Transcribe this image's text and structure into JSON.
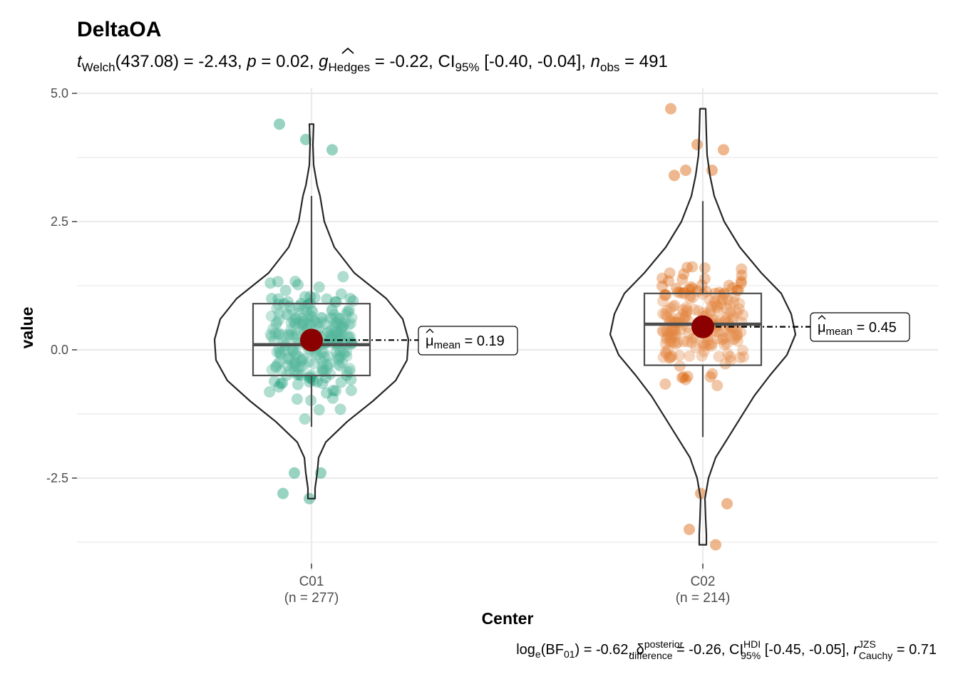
{
  "chart_data": {
    "type": "violin-box-scatter",
    "title": "DeltaOA",
    "subtitle": {
      "t_symbol": "t",
      "t_sub": "Welch",
      "t_value": "(437.08) = -2.43, ",
      "p_symbol": "p",
      "p_value": " = 0.02, ",
      "g_symbol": "g",
      "g_sub": "Hedges",
      "g_value": " = -0.22, CI",
      "ci_sub": "95%",
      "ci_value": " [-0.40, -0.04], ",
      "n_symbol": "n",
      "n_sub": "obs",
      "n_value": " = 491"
    },
    "caption": {
      "bf_pre": "log",
      "bf_e": "e",
      "bf_mid": "(BF",
      "bf_sub": "01",
      "bf_val": ") = -0.62, ",
      "delta_symbol": "δ",
      "delta_sup": "posterior",
      "delta_sub": "difference",
      "delta_val": " = -0.26, CI",
      "ci_sup": "HDI",
      "ci_sub": "95%",
      "ci_val": " [-0.45, -0.05], ",
      "r_symbol": "r",
      "r_sup": "JZS",
      "r_sub": "Cauchy",
      "r_val": " = 0.71"
    },
    "xlabel": "Center",
    "ylabel": "value",
    "ylim": [
      -3.9,
      5.0
    ],
    "y_ticks": [
      5.0,
      2.5,
      0.0,
      -2.5
    ],
    "y_tick_labels": [
      "5.0",
      "2.5",
      "0.0",
      "-2.5"
    ],
    "grid": true,
    "mean_color": "#8b0000",
    "groups": [
      {
        "name": "C01",
        "n_label": "(n = 277)",
        "color": "#1b9e77",
        "mean": 0.19,
        "mean_label_symbol": "μ",
        "mean_label_sub": "mean",
        "mean_label_value": " = 0.19",
        "box": {
          "q1": -0.5,
          "median": 0.1,
          "q3": 0.9,
          "whisker_low": -1.5,
          "whisker_high": 3.0
        },
        "violin_range": [
          -2.9,
          4.4
        ],
        "outliers": [
          4.4,
          4.1,
          3.9,
          -2.4,
          -2.4,
          -2.8,
          -2.9
        ]
      },
      {
        "name": "C02",
        "n_label": "(n = 214)",
        "color": "#d95f02",
        "mean": 0.45,
        "mean_label_symbol": "μ",
        "mean_label_sub": "mean",
        "mean_label_value": " = 0.45",
        "box": {
          "q1": -0.3,
          "median": 0.5,
          "q3": 1.1,
          "whisker_low": -1.7,
          "whisker_high": 2.9
        },
        "violin_range": [
          -3.8,
          4.7
        ],
        "outliers": [
          4.7,
          4.0,
          3.9,
          3.5,
          3.5,
          3.4,
          -2.8,
          -3.0,
          -3.5,
          -3.8
        ]
      }
    ]
  }
}
